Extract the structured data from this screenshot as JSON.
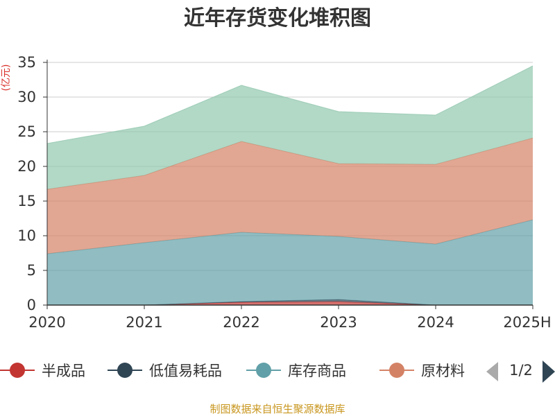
{
  "chart_data": {
    "type": "area",
    "stacked": true,
    "title": "近年存货变化堆积图",
    "ylabel": "(亿元)",
    "xlabel": "",
    "x": [
      "2020",
      "2021",
      "2022",
      "2023",
      "2024",
      "2025H"
    ],
    "ylim": [
      0,
      35
    ],
    "yticks": [
      0,
      5,
      10,
      15,
      20,
      25,
      30,
      35
    ],
    "grid": true,
    "series": [
      {
        "name": "半成品",
        "color": "#c23531",
        "values": [
          0.0,
          0.0,
          0.4,
          0.5,
          0.0,
          0.0
        ]
      },
      {
        "name": "低值易耗品",
        "color": "#2f4554",
        "values": [
          0.0,
          0.0,
          0.1,
          0.3,
          0.0,
          0.0
        ]
      },
      {
        "name": "库存商品",
        "color": "#61a0a8",
        "values": [
          7.4,
          9.0,
          10.0,
          9.1,
          8.8,
          12.3
        ]
      },
      {
        "name": "原材料",
        "color": "#d48265",
        "values": [
          9.3,
          9.7,
          13.1,
          10.5,
          11.5,
          11.8
        ]
      },
      {
        "name": "",
        "color": "#91c7ae",
        "values": [
          6.6,
          7.1,
          8.1,
          7.5,
          7.1,
          10.4
        ]
      }
    ],
    "legend": {
      "position": "bottom",
      "page": "1/2"
    },
    "source": "制图数据来自恒生聚源数据库"
  }
}
